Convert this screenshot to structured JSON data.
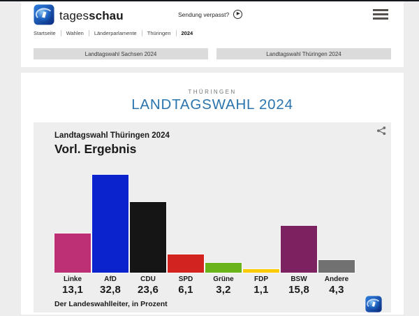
{
  "brand": {
    "name_regular": "tages",
    "name_bold": "schau"
  },
  "header": {
    "sendung_verpasst": "Sendung verpasst?"
  },
  "icons": {
    "play": "▶",
    "menu": "hamburger-icon",
    "share": "share-icon",
    "logo": "tagesschau-globe-icon"
  },
  "breadcrumb": {
    "items": [
      "Startseite",
      "Wahlen",
      "Länderparlamente",
      "Thüringen",
      "2024"
    ]
  },
  "tabs": [
    {
      "label": "Landtagswahl Sachsen 2024"
    },
    {
      "label": "Landtagswahl Thüringen 2024"
    }
  ],
  "main": {
    "kicker": "THÜRINGEN",
    "title": "LANDTAGSWAHL 2024"
  },
  "chart_data": {
    "type": "bar",
    "title": "Landtagswahl Thüringen 2024",
    "subtitle": "Vorl. Ergebnis",
    "source": "Der Landeswahlleiter, in Prozent",
    "unit": "Prozent",
    "ylim": [
      0,
      35
    ],
    "grid": false,
    "legend": "none",
    "categories": [
      "Linke",
      "AfD",
      "CDU",
      "SPD",
      "Grüne",
      "FDP",
      "BSW",
      "Andere"
    ],
    "values": [
      13.1,
      32.8,
      23.6,
      6.1,
      3.2,
      1.1,
      15.8,
      4.3
    ],
    "value_labels": [
      "13,1",
      "32,8",
      "23,6",
      "6,1",
      "3,2",
      "1,1",
      "15,8",
      "4,3"
    ],
    "colors": [
      "#be3075",
      "#0a23cd",
      "#151515",
      "#d2231f",
      "#6bb31b",
      "#fbca00",
      "#7c2261",
      "#717171"
    ]
  },
  "theme": {
    "accent_blue": "#2a74ad",
    "kicker_gray": "#6f7475",
    "page_bg": "#ededed",
    "chart_bg": "#eeeeee",
    "tab_bg": "#dbdbdb"
  }
}
